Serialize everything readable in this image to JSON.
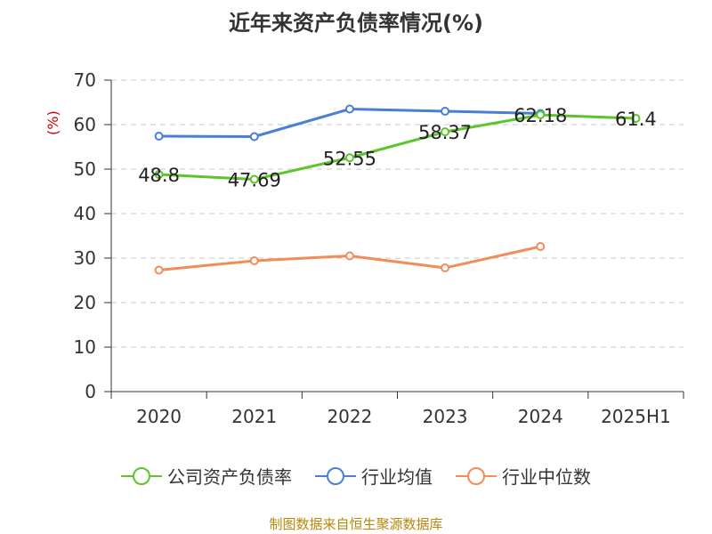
{
  "title": "近年来资产负债率情况(%)",
  "y_unit": "(%)",
  "source": "制图数据来自恒生聚源数据库",
  "chart_data": {
    "type": "line",
    "title": "近年来资产负债率情况(%)",
    "xlabel": "",
    "ylabel": "(%)",
    "categories": [
      "2020",
      "2021",
      "2022",
      "2023",
      "2024",
      "2025H1"
    ],
    "ylim": [
      0,
      70
    ],
    "yticks": [
      0,
      10,
      20,
      30,
      40,
      50,
      60,
      70
    ],
    "grid": true,
    "legend_position": "bottom",
    "series": [
      {
        "name": "公司资产负债率",
        "color": "#5bc52a",
        "values": [
          48.8,
          47.69,
          52.55,
          58.37,
          62.18,
          61.4
        ],
        "labels": [
          "48.8",
          "47.69",
          "52.55",
          "58.37",
          "62.18",
          "61.4"
        ]
      },
      {
        "name": "行业均值",
        "color": "#4a7fd4",
        "values": [
          57.4,
          57.3,
          63.5,
          63.0,
          62.5,
          null
        ]
      },
      {
        "name": "行业中位数",
        "color": "#f28c5a",
        "values": [
          27.3,
          29.4,
          30.5,
          27.8,
          32.6,
          null
        ]
      }
    ]
  }
}
